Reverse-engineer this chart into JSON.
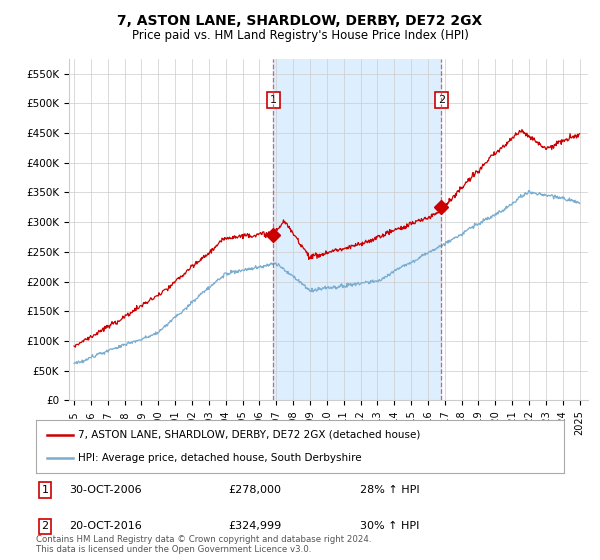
{
  "title": "7, ASTON LANE, SHARDLOW, DERBY, DE72 2GX",
  "subtitle": "Price paid vs. HM Land Registry's House Price Index (HPI)",
  "ylim": [
    0,
    575000
  ],
  "yticks": [
    0,
    50000,
    100000,
    150000,
    200000,
    250000,
    300000,
    350000,
    400000,
    450000,
    500000,
    550000
  ],
  "ytick_labels": [
    "£0",
    "£50K",
    "£100K",
    "£150K",
    "£200K",
    "£250K",
    "£300K",
    "£350K",
    "£400K",
    "£450K",
    "£500K",
    "£550K"
  ],
  "xlim_start": 1994.7,
  "xlim_end": 2025.5,
  "xtick_years": [
    1995,
    1996,
    1997,
    1998,
    1999,
    2000,
    2001,
    2002,
    2003,
    2004,
    2005,
    2006,
    2007,
    2008,
    2009,
    2010,
    2011,
    2012,
    2013,
    2014,
    2015,
    2016,
    2017,
    2018,
    2019,
    2020,
    2021,
    2022,
    2023,
    2024,
    2025
  ],
  "sale1_x": 2006.83,
  "sale1_y": 278000,
  "sale1_label": "1",
  "sale1_date": "30-OCT-2006",
  "sale1_price": "£278,000",
  "sale1_hpi": "28% ↑ HPI",
  "sale2_x": 2016.8,
  "sale2_y": 324999,
  "sale2_label": "2",
  "sale2_date": "20-OCT-2016",
  "sale2_price": "£324,999",
  "sale2_hpi": "30% ↑ HPI",
  "line_color_red": "#cc0000",
  "line_color_blue": "#7aadcf",
  "shade_color": "#ddeeff",
  "legend_label_red": "7, ASTON LANE, SHARDLOW, DERBY, DE72 2GX (detached house)",
  "legend_label_blue": "HPI: Average price, detached house, South Derbyshire",
  "footnote": "Contains HM Land Registry data © Crown copyright and database right 2024.\nThis data is licensed under the Open Government Licence v3.0.",
  "background_color": "#ffffff",
  "grid_color": "#cccccc"
}
